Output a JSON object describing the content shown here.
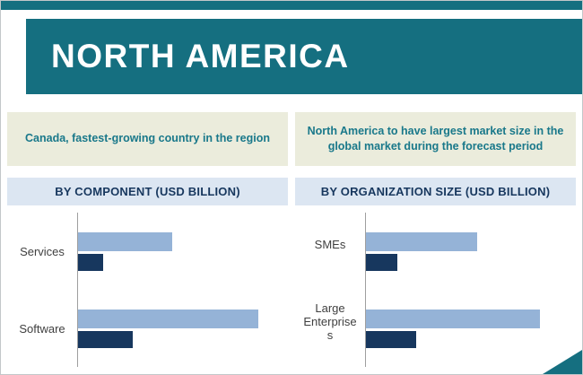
{
  "header": {
    "title": "NORTH AMERICA"
  },
  "notes": {
    "left": "Canada, fastest-growing country in the region",
    "right": "North America to have largest market size in the global market  during the forecast period"
  },
  "colors": {
    "teal_banner": "#156f80",
    "note_background": "#ebecdc",
    "note_text": "#19788a",
    "section_background": "#dce6f2",
    "section_text": "#17375e",
    "bar_light_blue": "#95b3d7",
    "bar_dark_navy": "#17375e"
  },
  "chart_data": [
    {
      "type": "bar",
      "orientation": "horizontal",
      "title": "BY COMPONENT (USD BILLION)",
      "categories": [
        "Services",
        "Software"
      ],
      "series": [
        {
          "name": "light-blue-series",
          "color": "#95b3d7",
          "values": [
            0.45,
            0.86
          ]
        },
        {
          "name": "dark-navy-series",
          "color": "#17375e",
          "values": [
            0.12,
            0.26
          ]
        }
      ],
      "xlim": [
        0,
        1
      ],
      "grid": false,
      "legend": "none"
    },
    {
      "type": "bar",
      "orientation": "horizontal",
      "title": "BY ORGANIZATION SIZE (USD BILLION)",
      "categories": [
        "SMEs",
        "Large Enterprises"
      ],
      "series": [
        {
          "name": "light-blue-series",
          "color": "#95b3d7",
          "values": [
            0.53,
            0.83
          ]
        },
        {
          "name": "dark-navy-series",
          "color": "#17375e",
          "values": [
            0.15,
            0.24
          ]
        }
      ],
      "xlim": [
        0,
        1
      ],
      "grid": false,
      "legend": "none"
    }
  ]
}
